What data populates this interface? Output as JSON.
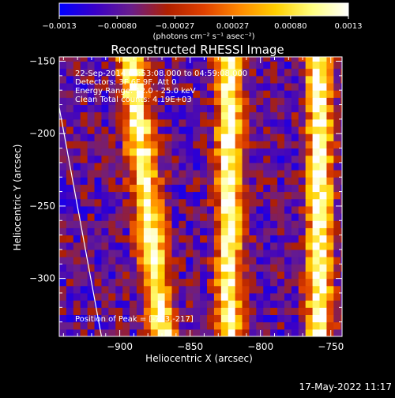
{
  "chart_data": {
    "type": "heatmap",
    "title": "Reconstructed RHESSI Image",
    "xlabel": "Heliocentric X (arcsec)",
    "ylabel": "Heliocentric Y (arcsec)",
    "xlim": [
      -943,
      -742
    ],
    "ylim": [
      -340,
      -147
    ],
    "x_ticks": [
      -900,
      -850,
      -800,
      -750
    ],
    "x_tick_labels": [
      "−900",
      "−850",
      "−800",
      "−750"
    ],
    "y_ticks": [
      -300,
      -250,
      -200,
      -150
    ],
    "y_tick_labels": [
      "−300",
      "−250",
      "−200",
      "−150"
    ],
    "colorbar": {
      "min": -0.0013,
      "max": 0.0013,
      "tick_labels": [
        "−0.0013",
        "−0.00080",
        "−0.00027",
        "0.00027",
        "0.00080",
        "0.0013"
      ],
      "unit_label": "(photons cm⁻² s⁻¹ asec⁻²)",
      "colors": [
        "#0000ff",
        "#3a00c8",
        "#6a1e8a",
        "#b02000",
        "#e04000",
        "#ff8a00",
        "#ffd000",
        "#ffff80",
        "#ffffff"
      ]
    },
    "annotations": [
      "22-Sep-2014 04:53:08.000 to 04:59:08.000",
      "Detectors: 3F 6F 9F, Att 0",
      "Energy Range: 12.0 - 25.0 keV",
      "Clean     Total counts: 4.19E+03"
    ],
    "peak_label": "Position of Peak = [-753,-217]",
    "bands": [
      {
        "x_center": -880,
        "drift_per_arcsec_y": -0.12,
        "width": 10,
        "peak": 0.0011
      },
      {
        "x_center": -822,
        "drift_per_arcsec_y": 0.0,
        "width": 9,
        "peak": 0.0012
      },
      {
        "x_center": -758,
        "drift_per_arcsec_y": 0.0,
        "width": 9,
        "peak": 0.0013
      }
    ],
    "limb_line": [
      [
        -943,
        -182
      ],
      [
        -913,
        -340
      ]
    ]
  },
  "footer_timestamp": "17-May-2022 11:17"
}
